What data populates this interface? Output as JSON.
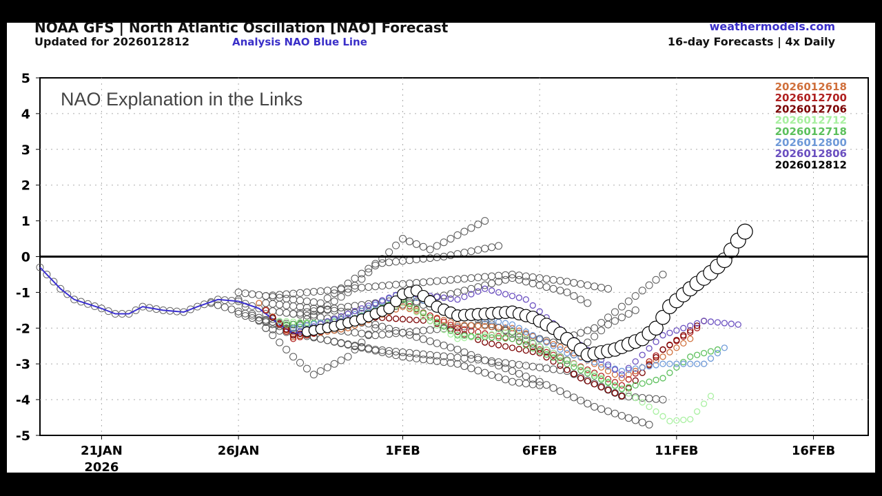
{
  "header": {
    "title": "NOAA GFS | North Atlantic Oscillation [NAO] Forecast",
    "updated": "Updated for 2026012812",
    "analysis_note": "Analysis NAO Blue Line",
    "site": "weathermodels.com",
    "forecast_note": "16-day Forecasts | 4x Daily"
  },
  "chart_data": {
    "type": "line",
    "annotation": "NAO Explanation in the Links",
    "ylim": [
      -5,
      5
    ],
    "yticks": [
      -5,
      -4,
      -3,
      -2,
      -1,
      0,
      1,
      2,
      3,
      4,
      5
    ],
    "xlim": [
      "2026-01-18T18",
      "2026-02-18T00"
    ],
    "xticks": [
      {
        "date": "2026-01-21",
        "label": "21JAN",
        "sublabel": "2026"
      },
      {
        "date": "2026-01-26",
        "label": "26JAN"
      },
      {
        "date": "2026-02-01",
        "label": "1FEB"
      },
      {
        "date": "2026-02-06",
        "label": "6FEB"
      },
      {
        "date": "2026-02-11",
        "label": "11FEB"
      },
      {
        "date": "2026-02-16",
        "label": "16FEB"
      }
    ],
    "grid": true,
    "legend_position": "top-right",
    "analysis": {
      "color": "#3a2fd0",
      "points": [
        [
          "2026-01-18T18",
          -0.3
        ],
        [
          "2026-01-19T12",
          -0.9
        ],
        [
          "2026-01-20T00",
          -1.2
        ],
        [
          "2026-01-21T00",
          -1.45
        ],
        [
          "2026-01-21T12",
          -1.6
        ],
        [
          "2026-01-22T00",
          -1.6
        ],
        [
          "2026-01-22T12",
          -1.4
        ],
        [
          "2026-01-23T06",
          -1.5
        ],
        [
          "2026-01-24T00",
          -1.55
        ],
        [
          "2026-01-24T12",
          -1.4
        ],
        [
          "2026-01-25T06",
          -1.2
        ],
        [
          "2026-01-26T00",
          -1.25
        ],
        [
          "2026-01-26T18",
          -1.45
        ],
        [
          "2026-01-27T12",
          -1.9
        ],
        [
          "2026-01-28T00",
          -2.15
        ],
        [
          "2026-01-28T12",
          -2.1
        ]
      ]
    },
    "ensemble_gray": [
      [
        [
          "2026-01-25T00",
          -1.3
        ],
        [
          "2026-01-28T00",
          -2.0
        ],
        [
          "2026-01-30T00",
          -1.0
        ],
        [
          "2026-02-01T00",
          0.5
        ],
        [
          "2026-02-02T00",
          0.2
        ],
        [
          "2026-02-04T00",
          1.0
        ]
      ],
      [
        [
          "2026-01-26T00",
          -1.2
        ],
        [
          "2026-01-28T00",
          -2.8
        ],
        [
          "2026-01-28T18",
          -3.3
        ],
        [
          "2026-01-30T00",
          -2.8
        ],
        [
          "2026-01-31T00",
          -2.0
        ]
      ],
      [
        [
          "2026-01-26T00",
          -1.0
        ],
        [
          "2026-01-29T00",
          -1.3
        ],
        [
          "2026-01-31T00",
          -0.2
        ],
        [
          "2026-02-02T12",
          0.0
        ],
        [
          "2026-02-04T12",
          0.3
        ]
      ],
      [
        [
          "2026-01-26T00",
          -1.6
        ],
        [
          "2026-01-29T00",
          -2.3
        ],
        [
          "2026-02-01T00",
          -2.8
        ],
        [
          "2026-02-03T00",
          -3.0
        ],
        [
          "2026-02-05T00",
          -3.5
        ],
        [
          "2026-02-06T00",
          -3.6
        ]
      ],
      [
        [
          "2026-01-27T00",
          -1.1
        ],
        [
          "2026-01-30T00",
          -0.9
        ],
        [
          "2026-02-02T00",
          -0.7
        ],
        [
          "2026-02-05T00",
          -0.5
        ],
        [
          "2026-02-07T00",
          -0.7
        ],
        [
          "2026-02-08T12",
          -0.9
        ]
      ],
      [
        [
          "2026-01-27T00",
          -1.5
        ],
        [
          "2026-01-31T00",
          -1.9
        ],
        [
          "2026-02-03T00",
          -2.6
        ],
        [
          "2026-02-06T00",
          -3.5
        ],
        [
          "2026-02-08T00",
          -4.2
        ],
        [
          "2026-02-10T00",
          -4.7
        ]
      ],
      [
        [
          "2026-01-27T00",
          -1.8
        ],
        [
          "2026-01-31T00",
          -2.2
        ],
        [
          "2026-02-04T00",
          -1.9
        ],
        [
          "2026-02-06T12",
          -2.4
        ],
        [
          "2026-02-08T00",
          -2.0
        ],
        [
          "2026-02-10T12",
          -0.5
        ]
      ],
      [
        [
          "2026-01-27T00",
          -1.3
        ],
        [
          "2026-01-30T12",
          -1.6
        ],
        [
          "2026-02-03T00",
          -1.0
        ],
        [
          "2026-02-05T00",
          -0.6
        ],
        [
          "2026-02-07T00",
          -1.0
        ],
        [
          "2026-02-07T18",
          -1.3
        ]
      ],
      [
        [
          "2026-01-27T00",
          -2.0
        ],
        [
          "2026-01-31T00",
          -2.6
        ],
        [
          "2026-02-04T00",
          -2.9
        ],
        [
          "2026-02-07T00",
          -3.2
        ],
        [
          "2026-02-09T00",
          -3.9
        ],
        [
          "2026-02-10T12",
          -4.0
        ]
      ],
      [
        [
          "2026-01-28T00",
          -1.6
        ],
        [
          "2026-02-01T00",
          -1.2
        ],
        [
          "2026-02-04T00",
          -1.8
        ],
        [
          "2026-02-07T00",
          -2.9
        ],
        [
          "2026-02-08T12",
          -1.9
        ],
        [
          "2026-02-09T12",
          -1.5
        ]
      ]
    ],
    "series": [
      {
        "name": "2026012618",
        "color": "#d0703c",
        "points": [
          [
            "2026-01-26T18",
            -1.3
          ],
          [
            "2026-01-28T00",
            -2.25
          ],
          [
            "2026-01-30T00",
            -2.0
          ],
          [
            "2026-02-01T00",
            -1.4
          ],
          [
            "2026-02-03T00",
            -1.9
          ],
          [
            "2026-02-05T00",
            -2.0
          ],
          [
            "2026-02-07T00",
            -2.6
          ],
          [
            "2026-02-09T00",
            -3.4
          ],
          [
            "2026-02-10T12",
            -2.8
          ],
          [
            "2026-02-11T12",
            -2.3
          ]
        ]
      },
      {
        "name": "2026012700",
        "color": "#b02020",
        "points": [
          [
            "2026-01-27T00",
            -1.5
          ],
          [
            "2026-01-28T00",
            -2.3
          ],
          [
            "2026-01-30T00",
            -1.9
          ],
          [
            "2026-02-01T00",
            -1.3
          ],
          [
            "2026-02-03T00",
            -2.0
          ],
          [
            "2026-02-05T00",
            -2.3
          ],
          [
            "2026-02-07T00",
            -2.9
          ],
          [
            "2026-02-09T00",
            -3.6
          ],
          [
            "2026-02-10T12",
            -2.6
          ],
          [
            "2026-02-11T18",
            -2.0
          ]
        ]
      },
      {
        "name": "2026012706",
        "color": "#7a0000",
        "points": [
          [
            "2026-01-27T06",
            -1.7
          ],
          [
            "2026-01-28T00",
            -2.2
          ],
          [
            "2026-01-31T00",
            -1.7
          ],
          [
            "2026-02-02T00",
            -1.8
          ],
          [
            "2026-02-04T00",
            -2.4
          ],
          [
            "2026-02-06T00",
            -2.7
          ],
          [
            "2026-02-07T12",
            -3.4
          ],
          [
            "2026-02-09T00",
            -3.9
          ],
          [
            "2026-02-10T12",
            -2.6
          ],
          [
            "2026-02-12T00",
            -1.8
          ]
        ]
      },
      {
        "name": "2026012712",
        "color": "#a8f0a0",
        "points": [
          [
            "2026-01-27T12",
            -1.8
          ],
          [
            "2026-01-30T00",
            -1.9
          ],
          [
            "2026-02-01T00",
            -1.3
          ],
          [
            "2026-02-03T00",
            -2.3
          ],
          [
            "2026-02-05T00",
            -2.1
          ],
          [
            "2026-02-07T00",
            -2.9
          ],
          [
            "2026-02-09T00",
            -3.7
          ],
          [
            "2026-02-10T00",
            -4.2
          ],
          [
            "2026-02-10T18",
            -4.6
          ],
          [
            "2026-02-11T12",
            -4.55
          ],
          [
            "2026-02-12T06",
            -3.9
          ]
        ]
      },
      {
        "name": "2026012718",
        "color": "#5cc05c",
        "points": [
          [
            "2026-01-27T18",
            -1.9
          ],
          [
            "2026-01-30T00",
            -1.8
          ],
          [
            "2026-02-01T00",
            -1.2
          ],
          [
            "2026-02-03T00",
            -2.2
          ],
          [
            "2026-02-05T00",
            -2.3
          ],
          [
            "2026-02-07T00",
            -3.0
          ],
          [
            "2026-02-09T00",
            -3.7
          ],
          [
            "2026-02-10T12",
            -3.4
          ],
          [
            "2026-02-11T12",
            -2.8
          ],
          [
            "2026-02-12T12",
            -2.6
          ]
        ]
      },
      {
        "name": "2026012800",
        "color": "#6f9ad8",
        "points": [
          [
            "2026-01-28T00",
            -2.0
          ],
          [
            "2026-01-30T00",
            -1.7
          ],
          [
            "2026-02-01T00",
            -1.0
          ],
          [
            "2026-02-03T00",
            -1.6
          ],
          [
            "2026-02-05T00",
            -1.9
          ],
          [
            "2026-02-07T00",
            -2.7
          ],
          [
            "2026-02-09T00",
            -3.2
          ],
          [
            "2026-02-10T12",
            -3.0
          ],
          [
            "2026-02-12T00",
            -3.0
          ],
          [
            "2026-02-12T18",
            -2.55
          ]
        ]
      },
      {
        "name": "2026012806",
        "color": "#6a4fc0",
        "points": [
          [
            "2026-01-28T06",
            -2.1
          ],
          [
            "2026-01-30T00",
            -1.6
          ],
          [
            "2026-02-01T00",
            -1.0
          ],
          [
            "2026-02-03T00",
            -1.2
          ],
          [
            "2026-02-04T00",
            -0.9
          ],
          [
            "2026-02-05T12",
            -1.2
          ],
          [
            "2026-02-07T00",
            -2.2
          ],
          [
            "2026-02-09T00",
            -3.3
          ],
          [
            "2026-02-10T12",
            -2.2
          ],
          [
            "2026-02-12T00",
            -1.8
          ],
          [
            "2026-02-13T06",
            -1.9
          ]
        ]
      },
      {
        "name": "2026012812",
        "color": "#000000",
        "main": true,
        "points": [
          [
            "2026-01-28T12",
            -2.1
          ],
          [
            "2026-01-29T12",
            -1.95
          ],
          [
            "2026-01-30T12",
            -1.75
          ],
          [
            "2026-01-31T12",
            -1.45
          ],
          [
            "2026-02-01T00",
            -1.05
          ],
          [
            "2026-02-01T12",
            -0.95
          ],
          [
            "2026-02-02T06",
            -1.4
          ],
          [
            "2026-02-03T00",
            -1.65
          ],
          [
            "2026-02-04T00",
            -1.6
          ],
          [
            "2026-02-05T00",
            -1.55
          ],
          [
            "2026-02-05T18",
            -1.7
          ],
          [
            "2026-02-06T12",
            -2.0
          ],
          [
            "2026-02-07T06",
            -2.45
          ],
          [
            "2026-02-07T18",
            -2.75
          ],
          [
            "2026-02-08T18",
            -2.6
          ],
          [
            "2026-02-09T18",
            -2.3
          ],
          [
            "2026-02-10T06",
            -2.0
          ],
          [
            "2026-02-10T18",
            -1.4
          ],
          [
            "2026-02-11T12",
            -0.9
          ],
          [
            "2026-02-12T06",
            -0.45
          ],
          [
            "2026-02-12T18",
            -0.1
          ],
          [
            "2026-02-13T06",
            0.45
          ],
          [
            "2026-02-13T12",
            0.7
          ]
        ]
      }
    ]
  }
}
